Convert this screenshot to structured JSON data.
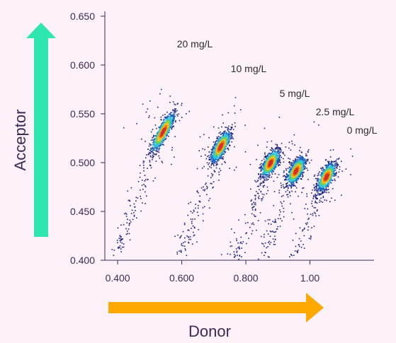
{
  "chart_data": {
    "type": "scatter",
    "xlabel": "Donor",
    "ylabel": "Acceptor",
    "xlim": [
      0.36,
      1.2
    ],
    "ylim": [
      0.4,
      0.655
    ],
    "x_ticks": [
      "0.400",
      "0.600",
      "0.800",
      "1.00"
    ],
    "x_tick_values": [
      0.4,
      0.6,
      0.8,
      1.0
    ],
    "y_ticks": [
      "0.400",
      "0.450",
      "0.500",
      "0.550",
      "0.600",
      "0.650"
    ],
    "y_tick_values": [
      0.4,
      0.45,
      0.5,
      0.55,
      0.6,
      0.65
    ],
    "series": [
      {
        "name": "20 mg/L",
        "center": [
          0.54,
          0.532
        ],
        "sd_x": 0.012,
        "sd_y": 0.01
      },
      {
        "name": "10 mg/L",
        "center": [
          0.72,
          0.517
        ],
        "sd_x": 0.013,
        "sd_y": 0.008
      },
      {
        "name": "5 mg/L",
        "center": [
          0.875,
          0.5
        ],
        "sd_x": 0.014,
        "sd_y": 0.007
      },
      {
        "name": "2.5 mg/L",
        "center": [
          0.955,
          0.492
        ],
        "sd_x": 0.014,
        "sd_y": 0.007
      },
      {
        "name": "0 mg/L",
        "center": [
          1.05,
          0.486
        ],
        "sd_x": 0.014,
        "sd_y": 0.007
      }
    ],
    "density_colors": [
      "#1a237e",
      "#1565c0",
      "#26c6da",
      "#7bd23f",
      "#fbc02d",
      "#f57c00",
      "#d32f2f"
    ],
    "grid": false,
    "arrow_colors": {
      "acceptor": "#2ee6b0",
      "donor": "#ffa800"
    }
  }
}
